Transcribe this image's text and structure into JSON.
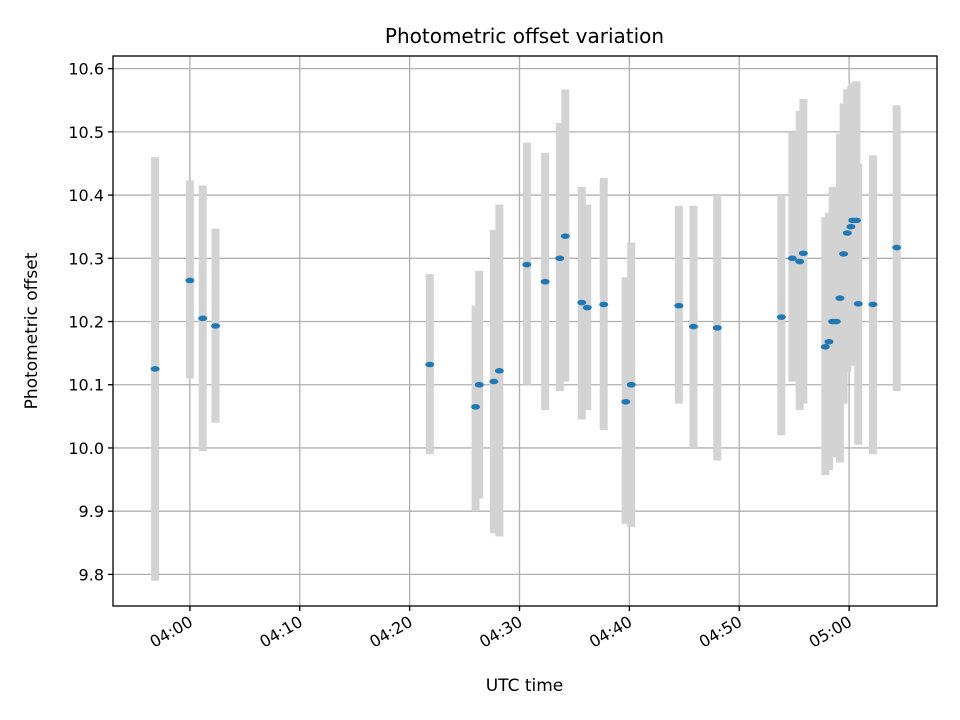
{
  "chart_data": {
    "type": "scatter",
    "title": "Photometric offset variation",
    "xlabel": "UTC time",
    "ylabel": "Photometric offset",
    "xlim": [
      "03:53",
      "05:08"
    ],
    "ylim": [
      9.75,
      10.62
    ],
    "grid": true,
    "x_ticks": [
      "04:00",
      "04:10",
      "04:20",
      "04:30",
      "04:40",
      "04:50",
      "05:00"
    ],
    "y_ticks": [
      9.8,
      9.9,
      10.0,
      10.1,
      10.2,
      10.3,
      10.4,
      10.5,
      10.6
    ],
    "errorbar_color": "#d3d3d3",
    "marker_color": "#1f77b4",
    "points": [
      {
        "time": "03:56:50",
        "y": 10.125,
        "ylow": 9.79,
        "yhigh": 10.46
      },
      {
        "time": "04:00:00",
        "y": 10.265,
        "ylow": 10.11,
        "yhigh": 10.423
      },
      {
        "time": "04:01:10",
        "y": 10.205,
        "ylow": 9.995,
        "yhigh": 10.415
      },
      {
        "time": "04:02:20",
        "y": 10.193,
        "ylow": 10.04,
        "yhigh": 10.347
      },
      {
        "time": "04:21:50",
        "y": 10.132,
        "ylow": 9.99,
        "yhigh": 10.275
      },
      {
        "time": "04:26:00",
        "y": 10.065,
        "ylow": 9.9,
        "yhigh": 10.225
      },
      {
        "time": "04:26:20",
        "y": 10.1,
        "ylow": 9.92,
        "yhigh": 10.28
      },
      {
        "time": "04:27:40",
        "y": 10.105,
        "ylow": 9.865,
        "yhigh": 10.345
      },
      {
        "time": "04:28:10",
        "y": 10.122,
        "ylow": 9.86,
        "yhigh": 10.385
      },
      {
        "time": "04:30:40",
        "y": 10.29,
        "ylow": 10.1,
        "yhigh": 10.483
      },
      {
        "time": "04:32:20",
        "y": 10.263,
        "ylow": 10.06,
        "yhigh": 10.467
      },
      {
        "time": "04:33:40",
        "y": 10.3,
        "ylow": 10.09,
        "yhigh": 10.514
      },
      {
        "time": "04:34:10",
        "y": 10.335,
        "ylow": 10.105,
        "yhigh": 10.567
      },
      {
        "time": "04:35:40",
        "y": 10.23,
        "ylow": 10.045,
        "yhigh": 10.413
      },
      {
        "time": "04:36:10",
        "y": 10.222,
        "ylow": 10.06,
        "yhigh": 10.385
      },
      {
        "time": "04:37:40",
        "y": 10.227,
        "ylow": 10.028,
        "yhigh": 10.427
      },
      {
        "time": "04:39:40",
        "y": 10.073,
        "ylow": 9.88,
        "yhigh": 10.27
      },
      {
        "time": "04:40:10",
        "y": 10.1,
        "ylow": 9.875,
        "yhigh": 10.325
      },
      {
        "time": "04:44:30",
        "y": 10.225,
        "ylow": 10.07,
        "yhigh": 10.383
      },
      {
        "time": "04:45:50",
        "y": 10.192,
        "ylow": 10.0,
        "yhigh": 10.383
      },
      {
        "time": "04:48:00",
        "y": 10.19,
        "ylow": 9.98,
        "yhigh": 10.4
      },
      {
        "time": "04:53:50",
        "y": 10.207,
        "ylow": 10.02,
        "yhigh": 10.4
      },
      {
        "time": "04:54:50",
        "y": 10.3,
        "ylow": 10.105,
        "yhigh": 10.5
      },
      {
        "time": "04:55:30",
        "y": 10.295,
        "ylow": 10.06,
        "yhigh": 10.533
      },
      {
        "time": "04:55:50",
        "y": 10.308,
        "ylow": 10.07,
        "yhigh": 10.552
      },
      {
        "time": "04:57:50",
        "y": 10.16,
        "ylow": 9.957,
        "yhigh": 10.365
      },
      {
        "time": "04:58:10",
        "y": 10.168,
        "ylow": 9.965,
        "yhigh": 10.372
      },
      {
        "time": "04:58:30",
        "y": 10.2,
        "ylow": 9.985,
        "yhigh": 10.413
      },
      {
        "time": "04:58:50",
        "y": 10.2,
        "ylow": 10.0,
        "yhigh": 10.4
      },
      {
        "time": "04:59:10",
        "y": 10.237,
        "ylow": 9.977,
        "yhigh": 10.497
      },
      {
        "time": "04:59:30",
        "y": 10.307,
        "ylow": 10.07,
        "yhigh": 10.545
      },
      {
        "time": "04:59:50",
        "y": 10.34,
        "ylow": 10.12,
        "yhigh": 10.567
      },
      {
        "time": "05:00:10",
        "y": 10.35,
        "ylow": 10.13,
        "yhigh": 10.572
      },
      {
        "time": "05:00:20",
        "y": 10.36,
        "ylow": 10.14,
        "yhigh": 10.578
      },
      {
        "time": "05:00:40",
        "y": 10.36,
        "ylow": 10.14,
        "yhigh": 10.58
      },
      {
        "time": "05:00:50",
        "y": 10.228,
        "ylow": 10.005,
        "yhigh": 10.45
      },
      {
        "time": "05:02:10",
        "y": 10.227,
        "ylow": 9.99,
        "yhigh": 10.463
      },
      {
        "time": "05:04:20",
        "y": 10.317,
        "ylow": 10.09,
        "yhigh": 10.542
      }
    ]
  }
}
